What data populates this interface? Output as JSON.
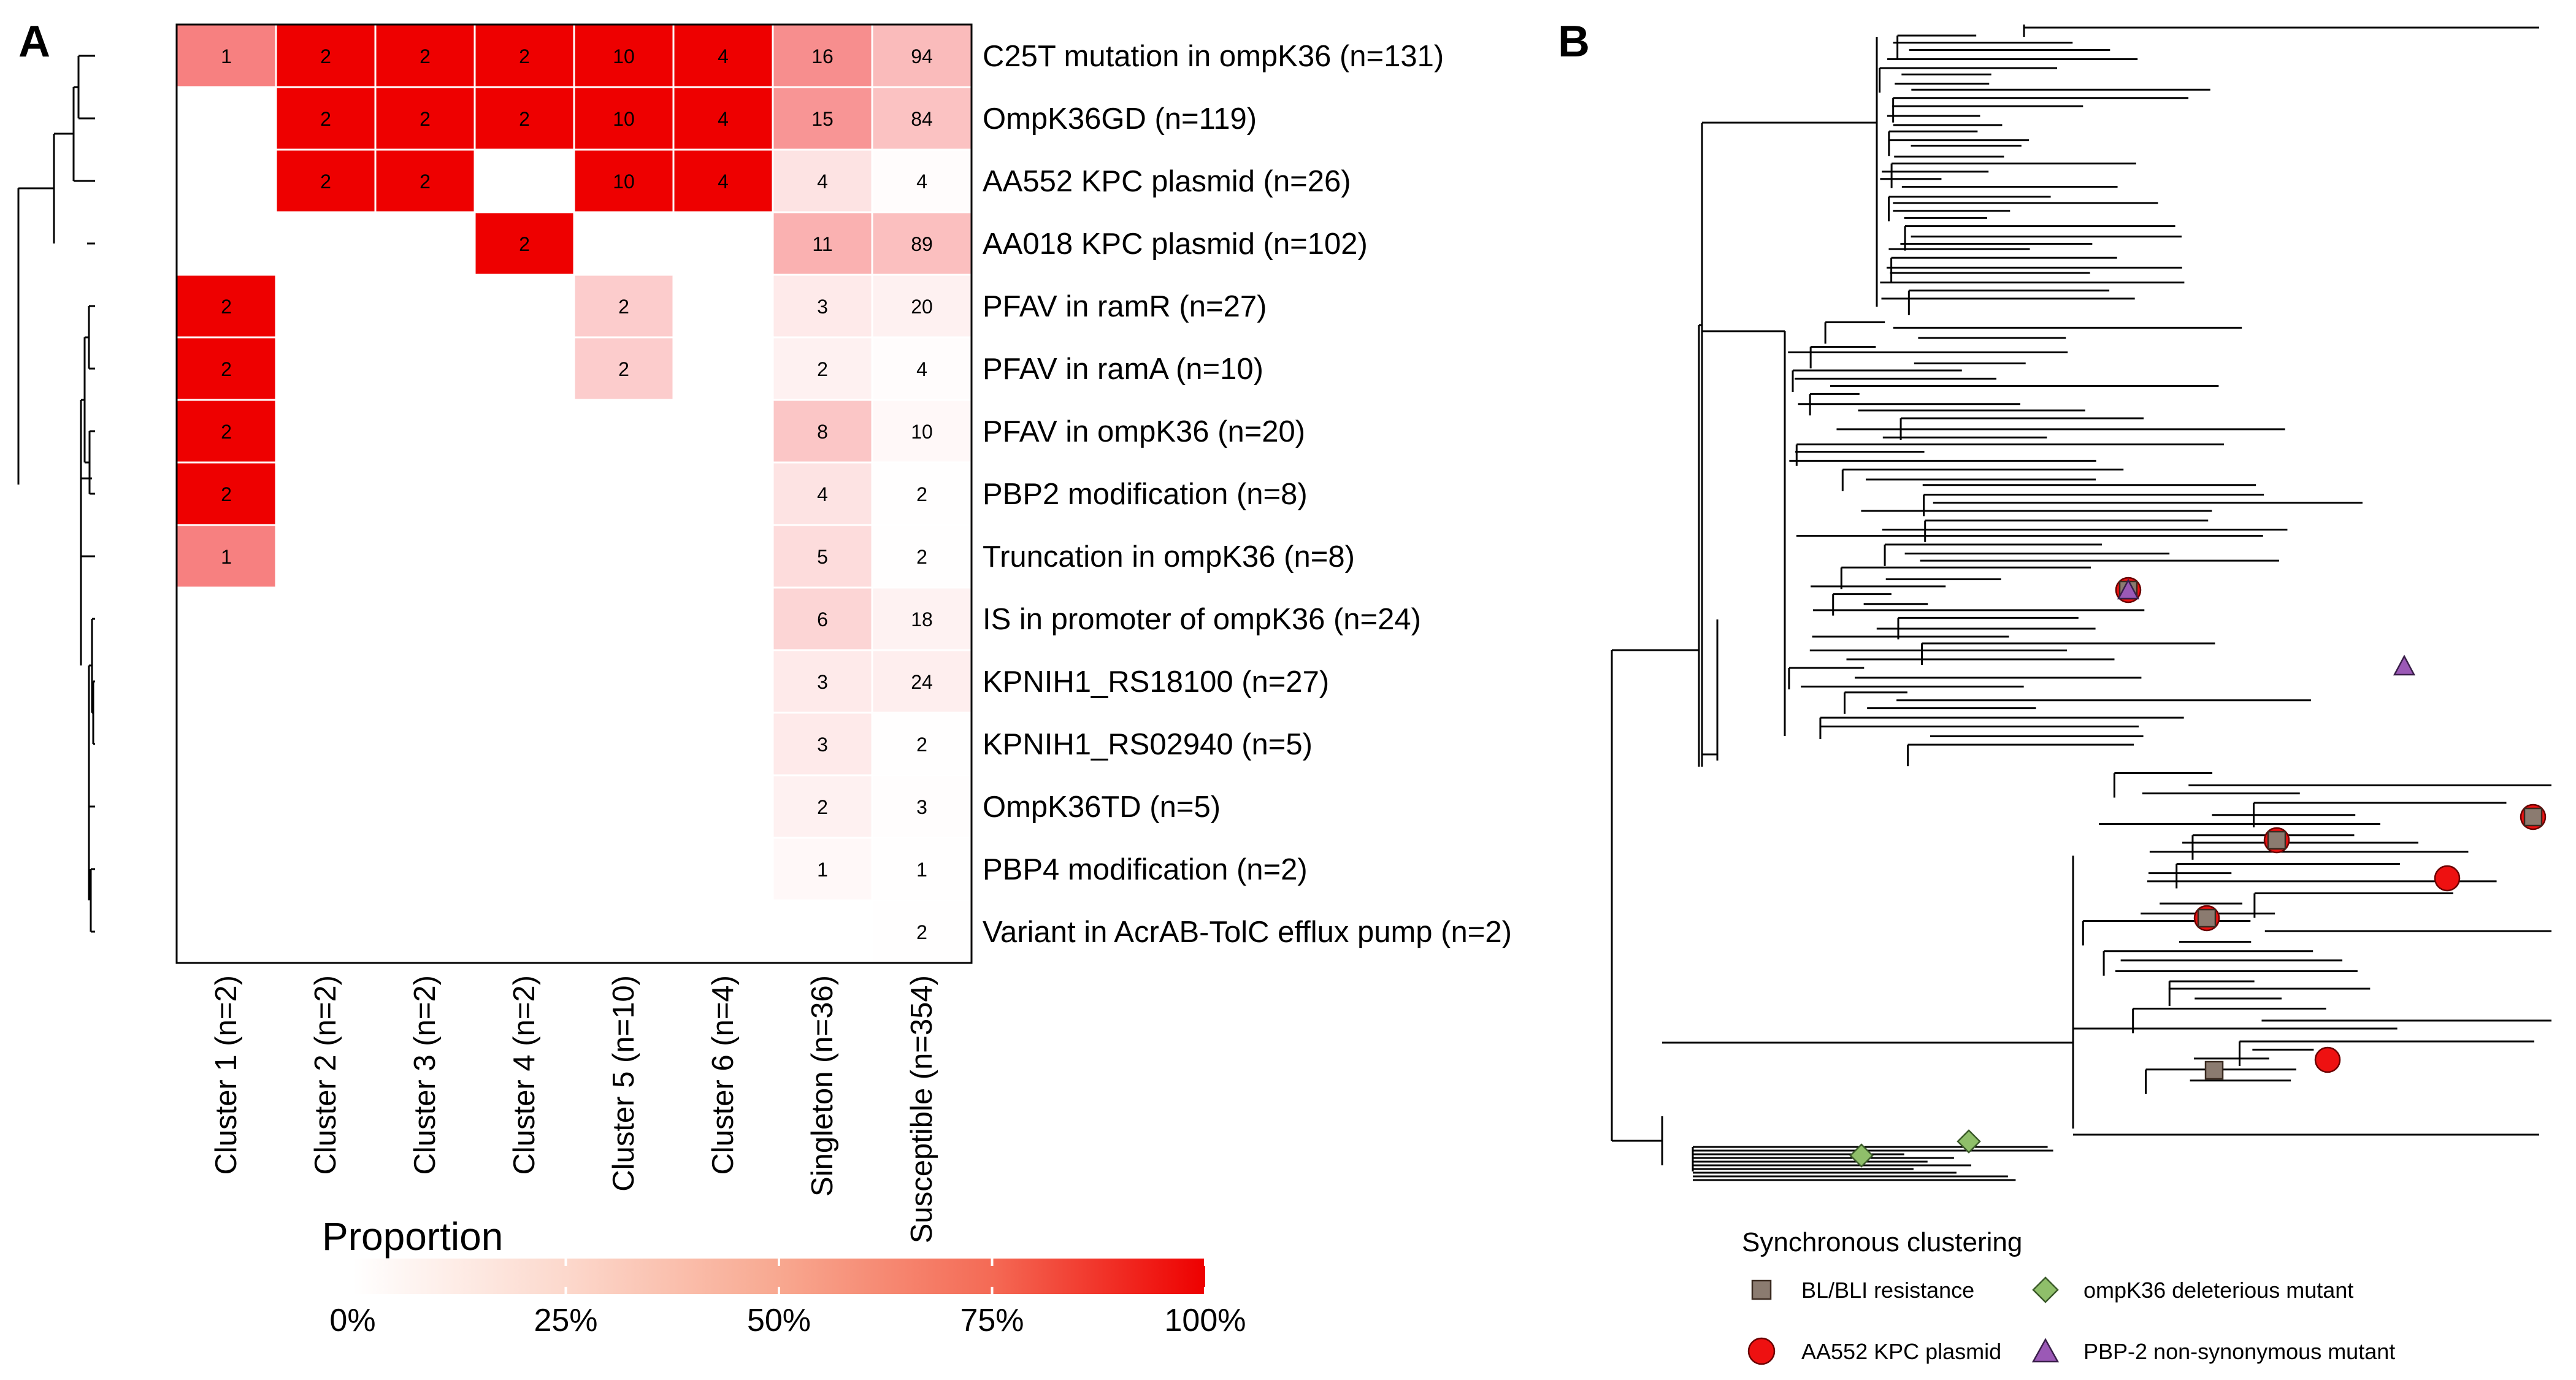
{
  "panels": {
    "a_label": "A",
    "b_label": "B"
  },
  "colors": {
    "high": "#ee0000",
    "low": "#ffffff",
    "grid_line": "#ffffff",
    "bl_bli": "#8b7b70",
    "aa552": "#ee1111",
    "ompk36": "#8fbf6a",
    "pbp2": "#9b59b6"
  },
  "chart_data": [
    {
      "type": "heatmap",
      "title": "",
      "row_labels": [
        "C25T mutation in ompK36 (n=131)",
        "OmpK36GD (n=119)",
        "AA552 KPC plasmid (n=26)",
        "AA018 KPC plasmid (n=102)",
        "PFAV in ramR (n=27)",
        "PFAV in ramA (n=10)",
        "PFAV in ompK36 (n=20)",
        "PBP2 modification (n=8)",
        "Truncation in ompK36 (n=8)",
        "IS in promoter of ompK36 (n=24)",
        "KPNIH1_RS18100 (n=27)",
        "KPNIH1_RS02940 (n=5)",
        "OmpK36TD (n=5)",
        "PBP4 modification (n=2)",
        "Variant in AcrAB-TolC efflux pump (n=2)"
      ],
      "column_labels": [
        "Cluster 1 (n=2)",
        "Cluster 2 (n=2)",
        "Cluster 3 (n=2)",
        "Cluster 4 (n=2)",
        "Cluster 5 (n=10)",
        "Cluster 6 (n=4)",
        "Singleton (n=36)",
        "Susceptible (n=354)"
      ],
      "column_n": [
        2,
        2,
        2,
        2,
        10,
        4,
        36,
        354
      ],
      "counts": [
        [
          1,
          2,
          2,
          2,
          10,
          4,
          16,
          94
        ],
        [
          null,
          2,
          2,
          2,
          10,
          4,
          15,
          84
        ],
        [
          null,
          2,
          2,
          null,
          10,
          4,
          4,
          4
        ],
        [
          null,
          null,
          null,
          2,
          null,
          null,
          11,
          89
        ],
        [
          2,
          null,
          null,
          null,
          2,
          null,
          3,
          20
        ],
        [
          2,
          null,
          null,
          null,
          2,
          null,
          2,
          4
        ],
        [
          2,
          null,
          null,
          null,
          null,
          null,
          8,
          10
        ],
        [
          2,
          null,
          null,
          null,
          null,
          null,
          4,
          2
        ],
        [
          1,
          null,
          null,
          null,
          null,
          null,
          5,
          2
        ],
        [
          null,
          null,
          null,
          null,
          null,
          null,
          6,
          18
        ],
        [
          null,
          null,
          null,
          null,
          null,
          null,
          3,
          24
        ],
        [
          null,
          null,
          null,
          null,
          null,
          null,
          3,
          2
        ],
        [
          null,
          null,
          null,
          null,
          null,
          null,
          2,
          3
        ],
        [
          null,
          null,
          null,
          null,
          null,
          null,
          1,
          1
        ],
        [
          null,
          null,
          null,
          null,
          null,
          null,
          null,
          2
        ]
      ],
      "legend": {
        "title": "Proportion",
        "ticks": [
          "0%",
          "25%",
          "50%",
          "75%",
          "100%"
        ]
      }
    },
    {
      "type": "tree",
      "legend": {
        "title": "Synchronous clustering",
        "items": [
          {
            "label": "BL/BLI resistance",
            "shape": "square",
            "color": "#8b7b70"
          },
          {
            "label": "ompK36 deleterious mutant",
            "shape": "diamond",
            "color": "#8fbf6a"
          },
          {
            "label": "AA552 KPC plasmid",
            "shape": "circle",
            "color": "#ee1111"
          },
          {
            "label": "PBP-2 non-synonymous mutant",
            "shape": "triangle",
            "color": "#9b59b6"
          }
        ]
      }
    }
  ]
}
